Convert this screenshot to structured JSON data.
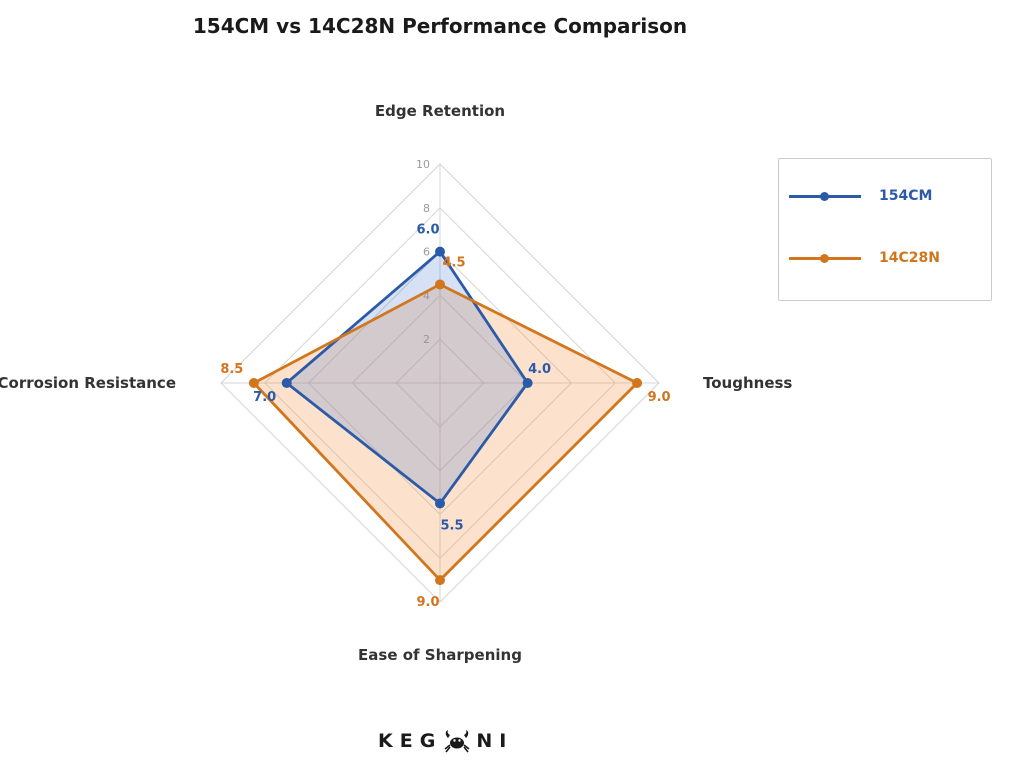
{
  "title": "154CM vs 14C28N Performance Comparison",
  "chart_data": {
    "type": "radar",
    "title": "154CM vs 14C28N Performance Comparison",
    "axes": [
      "Edge Retention",
      "Toughness",
      "Ease of Sharpening",
      "Corrosion Resistance"
    ],
    "range": [
      0,
      10
    ],
    "ticks": [
      2,
      4,
      6,
      8,
      10
    ],
    "grid": true,
    "legend_position": "right",
    "series": [
      {
        "name": "154CM",
        "values": [
          6.0,
          4.0,
          5.5,
          7.0
        ],
        "labels": [
          "6.0",
          "4.0",
          "5.5",
          "7.0"
        ],
        "color": "#2a5aa8",
        "fill": "rgba(70,120,210,0.22)"
      },
      {
        "name": "14C28N",
        "values": [
          4.5,
          9.0,
          9.0,
          8.5
        ],
        "labels": [
          "4.5",
          "9.0",
          "9.0",
          "8.5"
        ],
        "color": "#d2761e",
        "fill": "rgba(245,160,90,0.30)"
      }
    ]
  },
  "legend": {
    "items": [
      {
        "label": "154CM",
        "color": "#2a5aa8"
      },
      {
        "label": "14C28N",
        "color": "#d2761e"
      }
    ]
  },
  "brand": {
    "left_text": "KEG",
    "right_text": "NI",
    "logo_icon": "crab-icon"
  }
}
